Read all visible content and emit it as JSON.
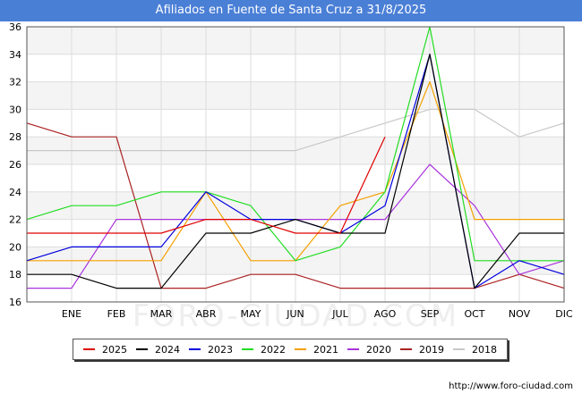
{
  "title": "Afiliados en Fuente de Santa Cruz a 31/8/2025",
  "source": "http://www.foro-ciudad.com",
  "watermark": "FORO-CIUDAD.COM",
  "chart_data": {
    "type": "line",
    "categories": [
      "",
      "ENE",
      "FEB",
      "MAR",
      "ABR",
      "MAY",
      "JUN",
      "JUL",
      "AGO",
      "SEP",
      "OCT",
      "NOV",
      "DIC"
    ],
    "ylim": [
      16,
      36
    ],
    "yticks": [
      16,
      18,
      20,
      22,
      24,
      26,
      28,
      30,
      32,
      34,
      36
    ],
    "grid": true,
    "legend_position": "bottom",
    "series": [
      {
        "name": "2025",
        "color": "#e00000",
        "values": [
          21,
          21,
          21,
          21,
          22,
          22,
          21,
          21,
          28,
          null,
          null,
          null,
          null
        ]
      },
      {
        "name": "2024",
        "color": "#000000",
        "values": [
          18,
          18,
          17,
          17,
          21,
          21,
          22,
          21,
          21,
          34,
          17,
          21,
          21
        ]
      },
      {
        "name": "2023",
        "color": "#0000dd",
        "values": [
          19,
          20,
          20,
          20,
          24,
          22,
          22,
          21,
          23,
          34,
          17,
          19,
          18
        ]
      },
      {
        "name": "2022",
        "color": "#22dd22",
        "values": [
          22,
          23,
          23,
          24,
          24,
          23,
          19,
          20,
          24,
          36,
          19,
          19,
          19
        ]
      },
      {
        "name": "2021",
        "color": "#f5a000",
        "values": [
          19,
          19,
          19,
          19,
          24,
          19,
          19,
          23,
          24,
          32,
          22,
          22,
          22
        ]
      },
      {
        "name": "2020",
        "color": "#aa33dd",
        "values": [
          17,
          17,
          22,
          22,
          22,
          22,
          22,
          22,
          22,
          26,
          23,
          18,
          19
        ]
      },
      {
        "name": "2019",
        "color": "#aa2222",
        "values": [
          29,
          28,
          28,
          17,
          17,
          18,
          18,
          17,
          17,
          17,
          17,
          18,
          17
        ]
      },
      {
        "name": "2018",
        "color": "#c8c8c8",
        "values": [
          27,
          27,
          27,
          27,
          27,
          27,
          27,
          28,
          29,
          30,
          30,
          28,
          29
        ]
      }
    ]
  }
}
